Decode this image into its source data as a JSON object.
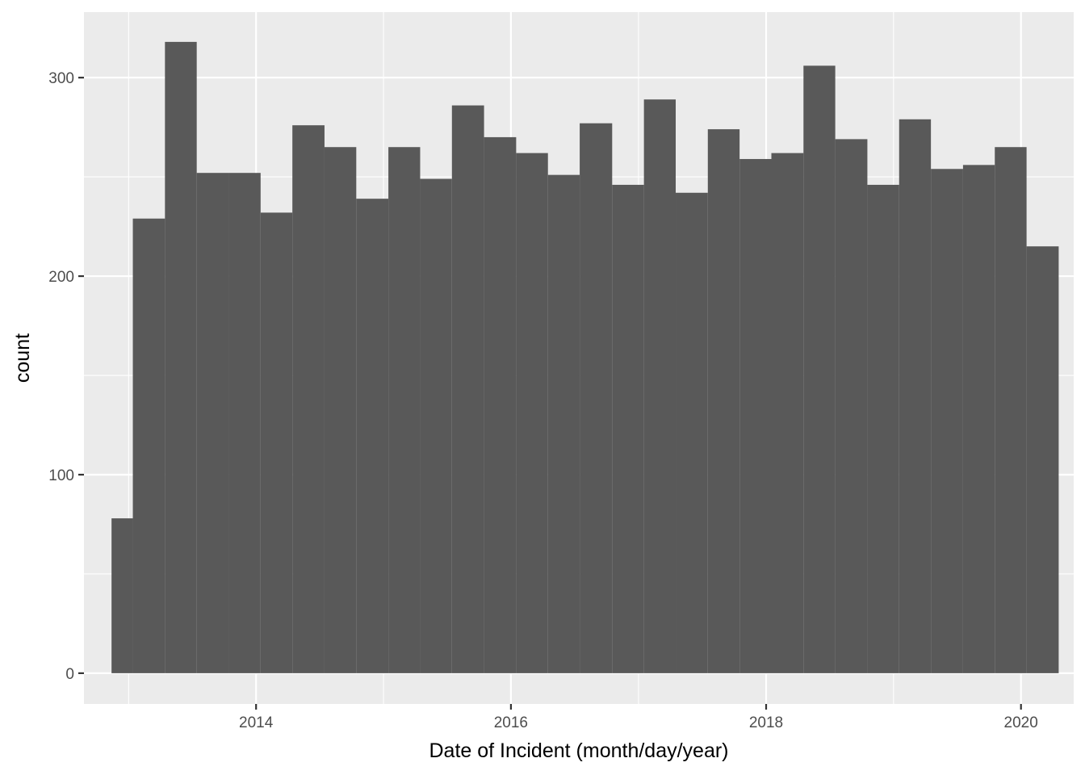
{
  "chart_data": {
    "type": "bar",
    "subtype": "histogram",
    "xlabel": "Date of Incident (month/day/year)",
    "ylabel": "count",
    "x_axis_type": "date",
    "xlim": [
      "2012-08-26",
      "2020-05-31"
    ],
    "ylim": [
      -15.5,
      333
    ],
    "x_ticks": [
      {
        "value": "2014-01-01",
        "label": "2014"
      },
      {
        "value": "2016-01-01",
        "label": "2016"
      },
      {
        "value": "2018-01-01",
        "label": "2018"
      },
      {
        "value": "2020-01-01",
        "label": "2020"
      }
    ],
    "y_ticks": [
      {
        "value": 0,
        "label": "0"
      },
      {
        "value": 100,
        "label": "100"
      },
      {
        "value": 200,
        "label": "200"
      },
      {
        "value": 300,
        "label": "300"
      }
    ],
    "grid": true,
    "bar_color": "#595959",
    "panel_background": "#ebebeb",
    "grid_color": "#ffffff",
    "bins": [
      {
        "start": "2012-11-13",
        "end": "2013-01-13",
        "count": 78
      },
      {
        "start": "2013-01-13",
        "end": "2013-04-15",
        "count": 229
      },
      {
        "start": "2013-04-15",
        "end": "2013-07-15",
        "count": 318
      },
      {
        "start": "2013-07-15",
        "end": "2013-10-15",
        "count": 252
      },
      {
        "start": "2013-10-15",
        "end": "2014-01-14",
        "count": 252
      },
      {
        "start": "2014-01-14",
        "end": "2014-04-15",
        "count": 232
      },
      {
        "start": "2014-04-15",
        "end": "2014-07-16",
        "count": 276
      },
      {
        "start": "2014-07-16",
        "end": "2014-10-15",
        "count": 265
      },
      {
        "start": "2014-10-15",
        "end": "2015-01-15",
        "count": 239
      },
      {
        "start": "2015-01-15",
        "end": "2015-04-16",
        "count": 265
      },
      {
        "start": "2015-04-16",
        "end": "2015-07-16",
        "count": 249
      },
      {
        "start": "2015-07-16",
        "end": "2015-10-16",
        "count": 286
      },
      {
        "start": "2015-10-16",
        "end": "2016-01-16",
        "count": 270
      },
      {
        "start": "2016-01-16",
        "end": "2016-04-16",
        "count": 262
      },
      {
        "start": "2016-04-16",
        "end": "2016-07-16",
        "count": 251
      },
      {
        "start": "2016-07-16",
        "end": "2016-10-17",
        "count": 277
      },
      {
        "start": "2016-10-17",
        "end": "2017-01-16",
        "count": 246
      },
      {
        "start": "2017-01-16",
        "end": "2017-04-17",
        "count": 289
      },
      {
        "start": "2017-04-17",
        "end": "2017-07-18",
        "count": 242
      },
      {
        "start": "2017-07-18",
        "end": "2017-10-17",
        "count": 274
      },
      {
        "start": "2017-10-17",
        "end": "2018-01-16",
        "count": 259
      },
      {
        "start": "2018-01-16",
        "end": "2018-04-18",
        "count": 262
      },
      {
        "start": "2018-04-18",
        "end": "2018-07-18",
        "count": 306
      },
      {
        "start": "2018-07-18",
        "end": "2018-10-18",
        "count": 269
      },
      {
        "start": "2018-10-18",
        "end": "2019-01-17",
        "count": 246
      },
      {
        "start": "2019-01-17",
        "end": "2019-04-18",
        "count": 279
      },
      {
        "start": "2019-04-18",
        "end": "2019-07-19",
        "count": 254
      },
      {
        "start": "2019-07-19",
        "end": "2019-10-18",
        "count": 256
      },
      {
        "start": "2019-10-18",
        "end": "2020-01-17",
        "count": 265
      },
      {
        "start": "2020-01-17",
        "end": "2020-04-18",
        "count": 215
      }
    ]
  }
}
